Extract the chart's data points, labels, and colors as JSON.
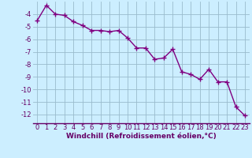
{
  "x": [
    0,
    1,
    2,
    3,
    4,
    5,
    6,
    7,
    8,
    9,
    10,
    11,
    12,
    13,
    14,
    15,
    16,
    17,
    18,
    19,
    20,
    21,
    22,
    23
  ],
  "y": [
    -4.5,
    -3.3,
    -4.0,
    -4.1,
    -4.6,
    -4.9,
    -5.3,
    -5.3,
    -5.4,
    -5.3,
    -5.9,
    -6.7,
    -6.7,
    -7.6,
    -7.5,
    -6.8,
    -8.6,
    -8.8,
    -9.2,
    -8.4,
    -9.4,
    -9.4,
    -11.4,
    -12.1
  ],
  "line_color": "#800080",
  "marker": "+",
  "marker_size": 4,
  "marker_lw": 1.0,
  "bg_color": "#cceeff",
  "grid_color": "#99bbcc",
  "xlabel": "Windchill (Refroidissement éolien,°C)",
  "ylabel_ticks": [
    -4,
    -5,
    -6,
    -7,
    -8,
    -9,
    -10,
    -11,
    -12
  ],
  "xtick_labels": [
    "0",
    "1",
    "2",
    "3",
    "4",
    "5",
    "6",
    "7",
    "8",
    "9",
    "10",
    "11",
    "12",
    "13",
    "14",
    "15",
    "16",
    "17",
    "18",
    "19",
    "20",
    "21",
    "22",
    "23"
  ],
  "ylim": [
    -12.7,
    -3.0
  ],
  "xlim": [
    -0.5,
    23.5
  ],
  "xlabel_fontsize": 6.5,
  "tick_fontsize": 6.0,
  "line_width": 1.0,
  "label_color": "#660066",
  "axis_color": "#660066"
}
